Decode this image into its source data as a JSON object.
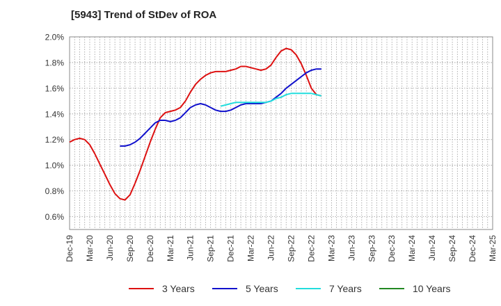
{
  "chart_data": {
    "type": "line",
    "title": "[5943]  Trend of StDev of ROA",
    "xlabel": "",
    "ylabel": "",
    "ylim": [
      0.5,
      2.0
    ],
    "y_ticks": [
      "0.6%",
      "0.8%",
      "1.0%",
      "1.2%",
      "1.4%",
      "1.6%",
      "1.8%",
      "2.0%"
    ],
    "y_tick_values": [
      0.6,
      0.8,
      1.0,
      1.2,
      1.4,
      1.6,
      1.8,
      2.0
    ],
    "x_ticks": [
      "Dec-19",
      "Mar-20",
      "Jun-20",
      "Sep-20",
      "Dec-20",
      "Mar-21",
      "Jun-21",
      "Sep-21",
      "Dec-21",
      "Mar-22",
      "Jun-22",
      "Sep-22",
      "Dec-22",
      "Mar-23",
      "Jun-23",
      "Sep-23",
      "Dec-23",
      "Mar-24",
      "Jun-24",
      "Sep-24",
      "Dec-24",
      "Mar-25"
    ],
    "grid": true,
    "legend_position": "bottom",
    "series": [
      {
        "name": "3 Years",
        "color": "#dd1111",
        "values": [
          1.18,
          1.2,
          1.21,
          1.2,
          1.16,
          1.09,
          1.01,
          0.93,
          0.85,
          0.78,
          0.74,
          0.73,
          0.77,
          0.86,
          0.96,
          1.07,
          1.18,
          1.28,
          1.37,
          1.41,
          1.42,
          1.43,
          1.45,
          1.5,
          1.57,
          1.63,
          1.67,
          1.7,
          1.72,
          1.73,
          1.73,
          1.73,
          1.74,
          1.75,
          1.77,
          1.77,
          1.76,
          1.75,
          1.74,
          1.75,
          1.78,
          1.84,
          1.89,
          1.91,
          1.9,
          1.86,
          1.79,
          1.7,
          1.6,
          1.55,
          1.54
        ]
      },
      {
        "name": "5 Years",
        "color": "#1111cc",
        "values": [
          null,
          null,
          null,
          null,
          null,
          null,
          null,
          null,
          null,
          null,
          1.15,
          1.15,
          1.16,
          1.18,
          1.21,
          1.25,
          1.29,
          1.33,
          1.35,
          1.35,
          1.34,
          1.35,
          1.37,
          1.41,
          1.45,
          1.47,
          1.48,
          1.47,
          1.45,
          1.43,
          1.42,
          1.42,
          1.43,
          1.45,
          1.47,
          1.48,
          1.48,
          1.48,
          1.48,
          1.49,
          1.5,
          1.53,
          1.56,
          1.6,
          1.63,
          1.66,
          1.69,
          1.72,
          1.74,
          1.75,
          1.75
        ]
      },
      {
        "name": "7 Years",
        "color": "#22dddd",
        "values": [
          null,
          null,
          null,
          null,
          null,
          null,
          null,
          null,
          null,
          null,
          null,
          null,
          null,
          null,
          null,
          null,
          null,
          null,
          null,
          null,
          null,
          null,
          null,
          null,
          null,
          null,
          null,
          null,
          null,
          null,
          1.46,
          1.47,
          1.48,
          1.49,
          1.49,
          1.49,
          1.49,
          1.49,
          1.49,
          1.49,
          1.5,
          1.52,
          1.53,
          1.55,
          1.56,
          1.56,
          1.56,
          1.56,
          1.56,
          1.55,
          1.54
        ]
      },
      {
        "name": "10 Years",
        "color": "#228822",
        "values": []
      }
    ]
  }
}
